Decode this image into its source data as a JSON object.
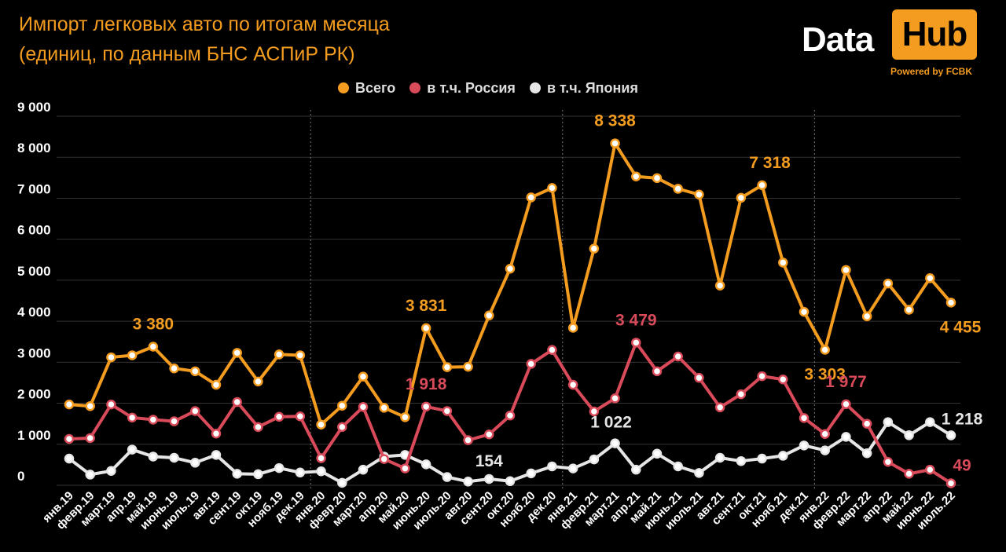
{
  "header": {
    "title_line1": "Импорт легковых авто по итогам месяца",
    "title_line2": "(единиц, по данным БНС АСПиР РК)"
  },
  "logo": {
    "word1": "Data",
    "word2": "Hub",
    "powered": "Powered by FCBK"
  },
  "colors": {
    "total": "#f39c1f",
    "russia": "#d94a5a",
    "japan": "#e6e6e6",
    "grid": "#333333"
  },
  "chart_data": {
    "type": "line",
    "categories": [
      "янв.19",
      "февр.19",
      "март.19",
      "апр.19",
      "май.19",
      "июнь.19",
      "июль.19",
      "авг.19",
      "сент.19",
      "окт.19",
      "нояб.19",
      "дек.19",
      "янв.20",
      "февр.20",
      "март.20",
      "апр.20",
      "май.20",
      "июнь.20",
      "июль.20",
      "авг.20",
      "сент.20",
      "окт.20",
      "нояб.20",
      "дек.20",
      "янв.21",
      "февр.21",
      "март.21",
      "апр.21",
      "май.21",
      "июнь.21",
      "июль.21",
      "авг.21",
      "сент.21",
      "окт.21",
      "нояб.21",
      "дек.21",
      "янв.22",
      "февр.22",
      "март.22",
      "апр.22",
      "май.22",
      "июнь.22",
      "июль.22"
    ],
    "ylim": [
      0,
      9000
    ],
    "yticks": [
      {
        "v": 0,
        "label": "0"
      },
      {
        "v": 1000,
        "label": "1 000"
      },
      {
        "v": 2000,
        "label": "2 000"
      },
      {
        "v": 3000,
        "label": "3 000"
      },
      {
        "v": 4000,
        "label": "4 000"
      },
      {
        "v": 5000,
        "label": "5 000"
      },
      {
        "v": 6000,
        "label": "6 000"
      },
      {
        "v": 7000,
        "label": "7 000"
      },
      {
        "v": 8000,
        "label": "8 000"
      },
      {
        "v": 9000,
        "label": "9 000"
      }
    ],
    "legend_position": "top-center",
    "grid": true,
    "year_separators_after": [
      "дек.19",
      "дек.20",
      "дек.21"
    ],
    "series": [
      {
        "name": "Всего",
        "key": "total",
        "values": [
          1970,
          1930,
          3120,
          3170,
          3380,
          2850,
          2780,
          2450,
          3230,
          2530,
          3190,
          3170,
          1480,
          1940,
          2650,
          1890,
          1660,
          3831,
          2880,
          2890,
          4140,
          5280,
          7020,
          7250,
          3840,
          5770,
          8338,
          7530,
          7490,
          7230,
          7090,
          4870,
          7010,
          7318,
          5430,
          4230,
          3303,
          5250,
          4120,
          4920,
          4280,
          5050,
          4455
        ]
      },
      {
        "name": "в т.ч. Россия",
        "key": "russia",
        "values": [
          1130,
          1150,
          1970,
          1650,
          1600,
          1560,
          1810,
          1260,
          2030,
          1420,
          1670,
          1680,
          660,
          1420,
          1910,
          640,
          410,
          1918,
          1810,
          1100,
          1240,
          1700,
          2960,
          3300,
          2450,
          1800,
          2120,
          3479,
          2780,
          3140,
          2620,
          1900,
          2220,
          2660,
          2580,
          1640,
          1250,
          1977,
          1500,
          570,
          280,
          380,
          49
        ]
      },
      {
        "name": "в т.ч. Япония",
        "key": "japan",
        "values": [
          650,
          260,
          350,
          870,
          700,
          670,
          550,
          740,
          280,
          270,
          420,
          310,
          340,
          60,
          380,
          700,
          740,
          510,
          200,
          90,
          154,
          100,
          290,
          460,
          410,
          630,
          1022,
          380,
          770,
          460,
          300,
          670,
          590,
          650,
          720,
          970,
          850,
          1180,
          780,
          1540,
          1220,
          1540,
          1218
        ]
      }
    ],
    "annotations": [
      {
        "series": "total",
        "category": "май.19",
        "text": "3 380"
      },
      {
        "series": "total",
        "category": "июнь.20",
        "text": "3 831"
      },
      {
        "series": "total",
        "category": "март.21",
        "text": "8 338"
      },
      {
        "series": "total",
        "category": "окт.21",
        "text": "7 318"
      },
      {
        "series": "total",
        "category": "янв.22",
        "text": "3 303"
      },
      {
        "series": "total",
        "category": "июль.22",
        "text": "4 455"
      },
      {
        "series": "russia",
        "category": "июнь.20",
        "text": "1 918"
      },
      {
        "series": "russia",
        "category": "апр.21",
        "text": "3 479"
      },
      {
        "series": "russia",
        "category": "февр.22",
        "text": "1 977"
      },
      {
        "series": "russia",
        "category": "июль.22",
        "text": "49"
      },
      {
        "series": "japan",
        "category": "сент.20",
        "text": "154"
      },
      {
        "series": "japan",
        "category": "март.21",
        "text": "1 022"
      },
      {
        "series": "japan",
        "category": "июль.22",
        "text": "1 218"
      }
    ]
  }
}
